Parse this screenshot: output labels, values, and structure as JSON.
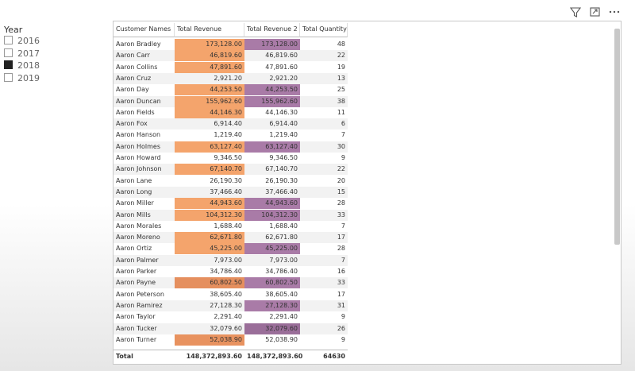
{
  "slicer": {
    "title": "Year",
    "options": [
      {
        "label": "2016",
        "checked": false
      },
      {
        "label": "2017",
        "checked": false
      },
      {
        "label": "2018",
        "checked": true
      },
      {
        "label": "2019",
        "checked": false
      }
    ]
  },
  "table": {
    "columns": [
      "Customer Names",
      "Total Revenue",
      "Total Revenue 2",
      "Total Quantity"
    ],
    "rows": [
      [
        "Aaron Bradley",
        "173,128.00",
        "173,128.00",
        48
      ],
      [
        "Aaron Carr",
        "46,819.60",
        "46,819.60",
        22
      ],
      [
        "Aaron Collins",
        "47,891.60",
        "47,891.60",
        19
      ],
      [
        "Aaron Cruz",
        "2,921.20",
        "2,921.20",
        13
      ],
      [
        "Aaron Day",
        "44,253.50",
        "44,253.50",
        25
      ],
      [
        "Aaron Duncan",
        "155,962.60",
        "155,962.60",
        38
      ],
      [
        "Aaron Fields",
        "44,146.30",
        "44,146.30",
        11
      ],
      [
        "Aaron Fox",
        "6,914.40",
        "6,914.40",
        6
      ],
      [
        "Aaron Hanson",
        "1,219.40",
        "1,219.40",
        7
      ],
      [
        "Aaron Holmes",
        "63,127.40",
        "63,127.40",
        30
      ],
      [
        "Aaron Howard",
        "9,346.50",
        "9,346.50",
        9
      ],
      [
        "Aaron Johnson",
        "67,140.70",
        "67,140.70",
        22
      ],
      [
        "Aaron Lane",
        "26,190.30",
        "26,190.30",
        20
      ],
      [
        "Aaron Long",
        "37,466.40",
        "37,466.40",
        15
      ],
      [
        "Aaron Miller",
        "44,943.60",
        "44,943.60",
        28
      ],
      [
        "Aaron Mills",
        "104,312.30",
        "104,312.30",
        33
      ],
      [
        "Aaron Morales",
        "1,688.40",
        "1,688.40",
        7
      ],
      [
        "Aaron Moreno",
        "62,671.80",
        "62,671.80",
        17
      ],
      [
        "Aaron Ortiz",
        "45,225.00",
        "45,225.00",
        28
      ],
      [
        "Aaron Palmer",
        "7,973.00",
        "7,973.00",
        7
      ],
      [
        "Aaron Parker",
        "34,786.40",
        "34,786.40",
        16
      ],
      [
        "Aaron Payne",
        "60,802.50",
        "60,802.50",
        33
      ],
      [
        "Aaron Peterson",
        "38,605.40",
        "38,605.40",
        17
      ],
      [
        "Aaron Ramirez",
        "27,128.30",
        "27,128.30",
        31
      ],
      [
        "Aaron Taylor",
        "2,291.40",
        "2,291.40",
        9
      ],
      [
        "Aaron Tucker",
        "32,079.60",
        "32,079.60",
        26
      ],
      [
        "Aaron Turner",
        "52,038.90",
        "52,038.90",
        9
      ]
    ],
    "fills": [
      [
        "#f4a46c",
        "#a97ba7"
      ],
      [
        "#f4a46c",
        null
      ],
      [
        "#f4a46c",
        null
      ],
      [
        null,
        null
      ],
      [
        "#f4a46c",
        "#a97ba7"
      ],
      [
        "#f4a46c",
        "#a97ba7"
      ],
      [
        "#f4a46c",
        null
      ],
      [
        null,
        null
      ],
      [
        null,
        null
      ],
      [
        "#f4a46c",
        "#a97ba7"
      ],
      [
        null,
        null
      ],
      [
        "#f4a46c",
        null
      ],
      [
        null,
        null
      ],
      [
        null,
        null
      ],
      [
        "#f4a46c",
        "#a97ba7"
      ],
      [
        "#f4a46c",
        "#a97ba7"
      ],
      [
        null,
        null
      ],
      [
        "#f4a46c",
        null
      ],
      [
        "#f4a46c",
        "#a97ba7"
      ],
      [
        null,
        null
      ],
      [
        null,
        null
      ],
      [
        "#e58f5e",
        "#a97ba7"
      ],
      [
        null,
        null
      ],
      [
        null,
        "#a97ba7"
      ],
      [
        null,
        null
      ],
      [
        null,
        "#9a6e99"
      ],
      [
        "#e8925f",
        null
      ]
    ],
    "total": [
      "Total",
      "148,372,893.60",
      "148,372,893.60",
      64630
    ]
  }
}
